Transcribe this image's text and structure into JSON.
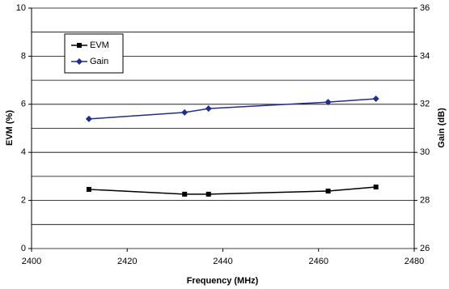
{
  "chart_data": {
    "type": "line",
    "x_label": "Frequency (MHz)",
    "y_label": "EVM (%)",
    "y2_label": "Gain (dB)",
    "xlim": [
      2400,
      2480
    ],
    "xticks": [
      2400,
      2420,
      2440,
      2460,
      2480
    ],
    "ylim": [
      0,
      10
    ],
    "yticks": [
      0,
      2,
      4,
      6,
      8,
      10
    ],
    "y2lim": [
      26,
      36
    ],
    "y2ticks": [
      26,
      28,
      30,
      32,
      34,
      36
    ],
    "grid_lines": [
      0,
      1,
      2,
      3,
      4,
      5,
      6,
      7,
      8,
      9,
      10
    ],
    "x": [
      2412,
      2432,
      2437,
      2462,
      2472
    ],
    "series": [
      {
        "name": "EVM",
        "color": "#000000",
        "marker": "square",
        "values": [
          2.46,
          2.26,
          2.26,
          2.39,
          2.56
        ]
      },
      {
        "name": "Gain",
        "color": "#1f2e8a",
        "marker": "diamond",
        "axis": "y2",
        "values": [
          31.39,
          31.66,
          31.82,
          32.09,
          32.23
        ]
      }
    ],
    "legend": "upper left"
  }
}
